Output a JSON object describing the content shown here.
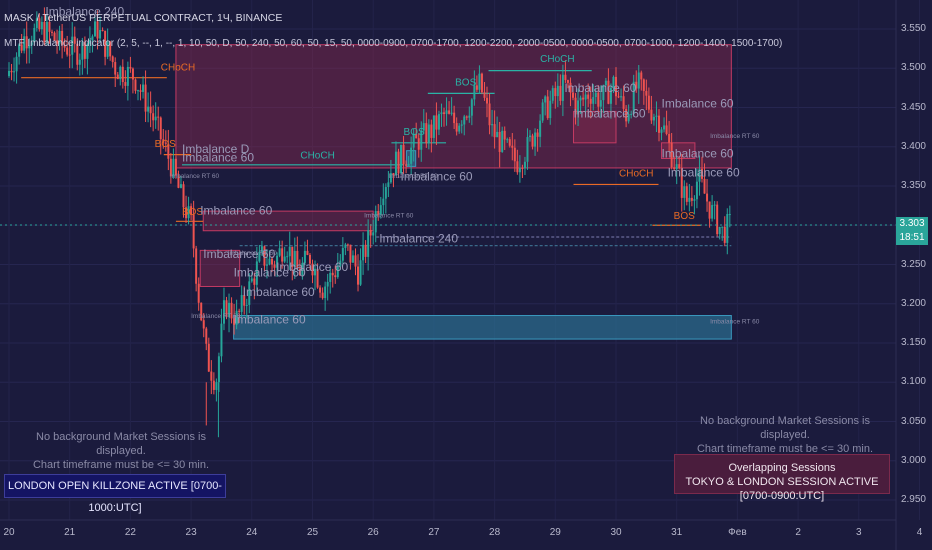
{
  "header": {
    "symbol_line": "MASK / TetherUS PERPETUAL CONTRACT, 1Ч, BINANCE",
    "indicator_line": "MTF Imbalance indicator (2, 5, --, 1, --, 1, 10, 50, D, 50, 240, 50, 60, 50, 15, 50, 0000-0900, 0700-1700, 1200-2200, 2000-0500, 0000-0500, 0700-1000, 1200-1400, 1500-1700)"
  },
  "price_axis": {
    "labels": [
      "3.550",
      "3.500",
      "3.450",
      "3.400",
      "3.350",
      "3.300",
      "3.250",
      "3.200",
      "3.150",
      "3.100",
      "3.050",
      "3.000",
      "2.950"
    ],
    "last_price": "3.303",
    "countdown": "18:51"
  },
  "time_axis": {
    "labels": [
      "20",
      "21",
      "22",
      "23",
      "24",
      "25",
      "26",
      "27",
      "28",
      "29",
      "30",
      "31",
      "Фев",
      "2",
      "3",
      "4"
    ]
  },
  "notes": {
    "left_line1": "No background Market Sessions is displayed.",
    "left_line2": "Chart timeframe must be <= 30 min.",
    "right_line1": "No background Market Sessions is displayed.",
    "right_line2": "Chart timeframe must be <= 30 min."
  },
  "sessions": {
    "left_box": "LONDON OPEN KILLZONE ACTIVE [0700-1000:UTC]",
    "right_title": "Overlapping Sessions",
    "right_text": "TOKYO & LONDON SESSION ACTIVE [0700-0900:UTC]"
  },
  "chart_data": {
    "type": "candlestick",
    "timeframe": "1Ч",
    "y_range": [
      2.925,
      3.575
    ],
    "last_price": 3.303,
    "key_prices": [
      3.56,
      3.51,
      3.5,
      3.47,
      3.43,
      3.39,
      3.33,
      3.3,
      3.28,
      3.24,
      3.2,
      3.15,
      3.12,
      3.05,
      3.04
    ],
    "annotations": [
      {
        "text": "CHoCH",
        "x": 22.5,
        "y": 3.497,
        "color": "#e96a25"
      },
      {
        "text": "BOS",
        "x": 22.4,
        "y": 3.4,
        "color": "#e96a25"
      },
      {
        "text": "BOS",
        "x": 22.85,
        "y": 3.313,
        "color": "#e96a25"
      },
      {
        "text": "CHoCH",
        "x": 24.8,
        "y": 3.385,
        "color": "#2ab3a6"
      },
      {
        "text": "BOS",
        "x": 26.5,
        "y": 3.415,
        "color": "#2ab3a6"
      },
      {
        "text": "BOS",
        "x": 27.35,
        "y": 3.478,
        "color": "#2ab3a6"
      },
      {
        "text": "CHoCH",
        "x": 28.75,
        "y": 3.508,
        "color": "#2ab3a6"
      },
      {
        "text": "CHoCH",
        "x": 30.05,
        "y": 3.362,
        "color": "#e96a25"
      },
      {
        "text": "BOS",
        "x": 30.95,
        "y": 3.308,
        "color": "#e96a25"
      }
    ],
    "imbalance_zones": [
      {
        "label": "Imbalance 240",
        "x0": 22.75,
        "x1": 31.9,
        "top": 3.53,
        "bottom": 3.373,
        "kind": "bearish"
      },
      {
        "label": "Imbalance 60",
        "x0": 23.2,
        "x1": 26.0,
        "top": 3.318,
        "bottom": 3.293,
        "kind": "bearish"
      },
      {
        "label": "Imbalance 60",
        "x0": 23.15,
        "x1": 23.8,
        "top": 3.268,
        "bottom": 3.222,
        "kind": "bearish"
      },
      {
        "label": "Imbalance 60",
        "x0": 23.7,
        "x1": 31.9,
        "top": 3.185,
        "bottom": 3.155,
        "kind": "bullish"
      },
      {
        "label": "Imbalance 60",
        "x0": 26.55,
        "x1": 26.7,
        "top": 3.395,
        "bottom": 3.375,
        "kind": "bullish"
      },
      {
        "label": "Imbalance 60",
        "x0": 29.3,
        "x1": 30.0,
        "top": 3.445,
        "bottom": 3.405,
        "kind": "bearish"
      },
      {
        "label": "Imbalance 60",
        "x0": 30.75,
        "x1": 31.3,
        "top": 3.405,
        "bottom": 3.385,
        "kind": "bearish"
      }
    ],
    "imbalance_labels": [
      {
        "text": "Imbalance 240",
        "x": 20.6,
        "y": 3.567
      },
      {
        "text": "Imbalance D",
        "x": 22.85,
        "y": 3.392
      },
      {
        "text": "Imbalance 60",
        "x": 22.85,
        "y": 3.381
      },
      {
        "text": "Imbalance 60",
        "x": 23.15,
        "y": 3.314
      },
      {
        "text": "Imbalance 60",
        "x": 23.2,
        "y": 3.258
      },
      {
        "text": "Imbalance 60",
        "x": 23.7,
        "y": 3.235
      },
      {
        "text": "Imbalance 60",
        "x": 23.85,
        "y": 3.21
      },
      {
        "text": "Imbalance 60",
        "x": 24.4,
        "y": 3.242
      },
      {
        "text": "Imbalance 60",
        "x": 23.7,
        "y": 3.175
      },
      {
        "text": "Imbalance 240",
        "x": 26.1,
        "y": 3.278
      },
      {
        "text": "Imbalance 60",
        "x": 26.45,
        "y": 3.357
      },
      {
        "text": "Imbalance 60",
        "x": 29.15,
        "y": 3.47
      },
      {
        "text": "Imbalance 60",
        "x": 29.3,
        "y": 3.437
      },
      {
        "text": "Imbalance 60",
        "x": 30.75,
        "y": 3.45
      },
      {
        "text": "Imbalance 60",
        "x": 30.85,
        "y": 3.362
      },
      {
        "text": "Imbalance 60",
        "x": 30.75,
        "y": 3.386
      }
    ],
    "rt_labels": [
      {
        "text": "Imbalance RT 60",
        "x": 25.85,
        "y": 3.31
      },
      {
        "text": "Imbalance RT 60",
        "x": 31.55,
        "y": 3.175
      },
      {
        "text": "Imbalance RT 60",
        "x": 23.6,
        "y": 3.262
      },
      {
        "text": "Imbalance RT 60",
        "x": 31.55,
        "y": 3.411
      },
      {
        "text": "Imbalance RT 60",
        "x": 22.65,
        "y": 3.36
      },
      {
        "text": "Imbalance RT 60",
        "x": 23.0,
        "y": 3.182
      },
      {
        "text": "Imbalance RT 60",
        "x": 26.25,
        "y": 3.36
      }
    ]
  }
}
